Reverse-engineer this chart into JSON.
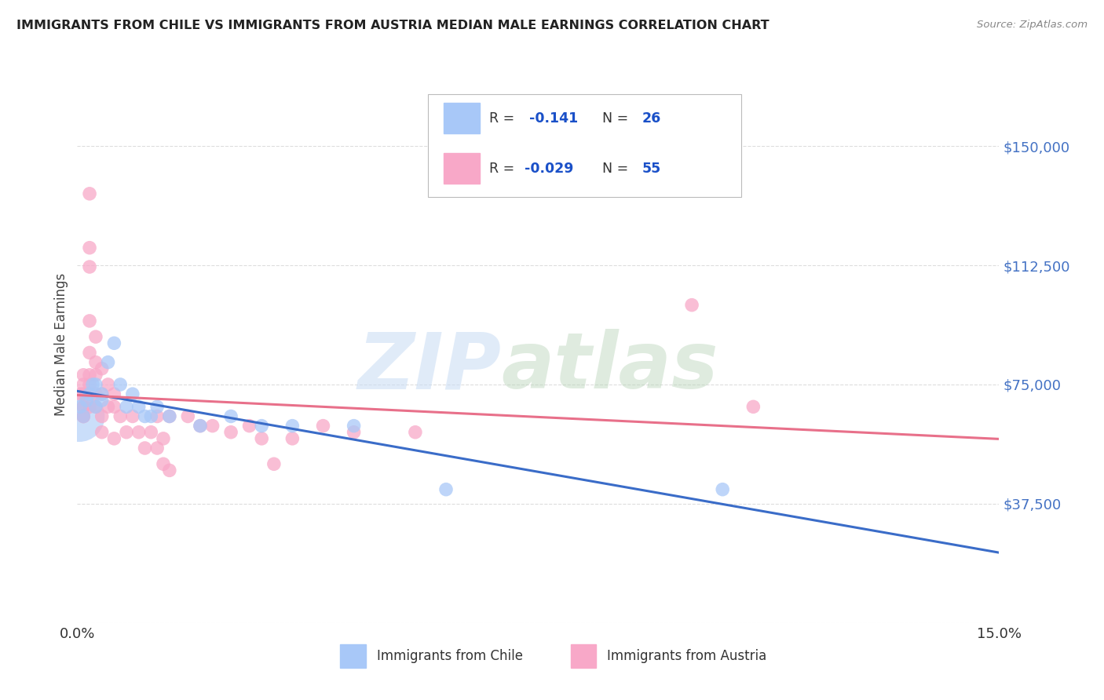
{
  "title": "IMMIGRANTS FROM CHILE VS IMMIGRANTS FROM AUSTRIA MEDIAN MALE EARNINGS CORRELATION CHART",
  "source": "Source: ZipAtlas.com",
  "ylabel": "Median Male Earnings",
  "xlim": [
    0.0,
    0.15
  ],
  "ylim": [
    0,
    175000
  ],
  "yticks": [
    0,
    37500,
    75000,
    112500,
    150000
  ],
  "ytick_labels": [
    "",
    "$37,500",
    "$75,000",
    "$112,500",
    "$150,000"
  ],
  "xticks": [
    0.0,
    0.15
  ],
  "xtick_labels": [
    "0.0%",
    "15.0%"
  ],
  "background_color": "#ffffff",
  "grid_color": "#dddddd",
  "chile_color": "#a8c8f8",
  "austria_color": "#f8a8c8",
  "chile_line_color": "#3a6cc8",
  "austria_line_color": "#e8708a",
  "title_color": "#222222",
  "axis_label_color": "#444444",
  "right_tick_color": "#4472c4",
  "legend_text_color": "#1a50c8",
  "legend_label_color": "#333333",
  "chile_points": [
    [
      0.0005,
      68000
    ],
    [
      0.001,
      65000
    ],
    [
      0.0015,
      70000
    ],
    [
      0.002,
      72000
    ],
    [
      0.0025,
      75000
    ],
    [
      0.003,
      68000
    ],
    [
      0.003,
      75000
    ],
    [
      0.004,
      72000
    ],
    [
      0.004,
      70000
    ],
    [
      0.005,
      82000
    ],
    [
      0.006,
      88000
    ],
    [
      0.007,
      75000
    ],
    [
      0.008,
      68000
    ],
    [
      0.009,
      72000
    ],
    [
      0.01,
      68000
    ],
    [
      0.011,
      65000
    ],
    [
      0.012,
      65000
    ],
    [
      0.013,
      68000
    ],
    [
      0.015,
      65000
    ],
    [
      0.02,
      62000
    ],
    [
      0.025,
      65000
    ],
    [
      0.03,
      62000
    ],
    [
      0.035,
      62000
    ],
    [
      0.045,
      62000
    ],
    [
      0.06,
      42000
    ],
    [
      0.105,
      42000
    ]
  ],
  "austria_points": [
    [
      0.0005,
      72000
    ],
    [
      0.001,
      75000
    ],
    [
      0.001,
      68000
    ],
    [
      0.001,
      78000
    ],
    [
      0.001,
      68000
    ],
    [
      0.001,
      65000
    ],
    [
      0.001,
      72000
    ],
    [
      0.001,
      65000
    ],
    [
      0.002,
      135000
    ],
    [
      0.002,
      118000
    ],
    [
      0.002,
      112000
    ],
    [
      0.002,
      95000
    ],
    [
      0.002,
      85000
    ],
    [
      0.002,
      78000
    ],
    [
      0.002,
      75000
    ],
    [
      0.002,
      68000
    ],
    [
      0.003,
      90000
    ],
    [
      0.003,
      82000
    ],
    [
      0.003,
      78000
    ],
    [
      0.003,
      72000
    ],
    [
      0.003,
      68000
    ],
    [
      0.004,
      80000
    ],
    [
      0.004,
      72000
    ],
    [
      0.004,
      65000
    ],
    [
      0.004,
      60000
    ],
    [
      0.005,
      75000
    ],
    [
      0.005,
      68000
    ],
    [
      0.006,
      72000
    ],
    [
      0.006,
      68000
    ],
    [
      0.006,
      58000
    ],
    [
      0.007,
      65000
    ],
    [
      0.008,
      60000
    ],
    [
      0.009,
      65000
    ],
    [
      0.01,
      60000
    ],
    [
      0.011,
      55000
    ],
    [
      0.012,
      60000
    ],
    [
      0.013,
      65000
    ],
    [
      0.013,
      55000
    ],
    [
      0.014,
      58000
    ],
    [
      0.014,
      50000
    ],
    [
      0.015,
      65000
    ],
    [
      0.015,
      48000
    ],
    [
      0.018,
      65000
    ],
    [
      0.02,
      62000
    ],
    [
      0.022,
      62000
    ],
    [
      0.025,
      60000
    ],
    [
      0.028,
      62000
    ],
    [
      0.03,
      58000
    ],
    [
      0.032,
      50000
    ],
    [
      0.035,
      58000
    ],
    [
      0.04,
      62000
    ],
    [
      0.045,
      60000
    ],
    [
      0.055,
      60000
    ],
    [
      0.1,
      100000
    ],
    [
      0.11,
      68000
    ]
  ]
}
